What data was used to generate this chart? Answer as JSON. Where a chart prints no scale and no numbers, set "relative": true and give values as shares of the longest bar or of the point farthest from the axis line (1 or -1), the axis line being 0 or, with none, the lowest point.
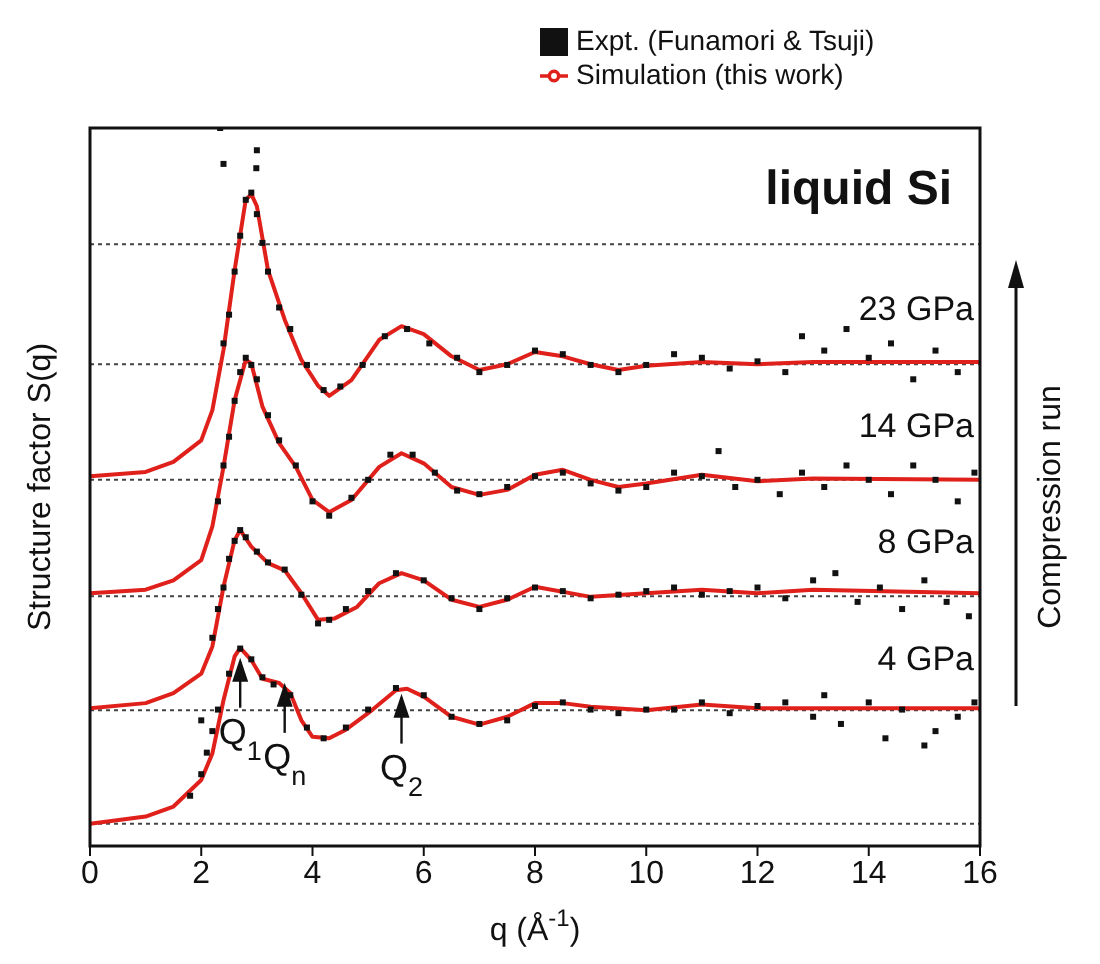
{
  "chart_data": {
    "type": "line",
    "relative": true,
    "xlabel": "q (Å$^{-1}$)",
    "ylabel": "Structure factor S(q)",
    "xlim": [
      0,
      16
    ],
    "xticks": [
      0,
      2,
      4,
      6,
      8,
      10,
      12,
      14,
      16
    ],
    "legend": "top right",
    "series": [
      {
        "name": "Expt. (Funamori & Tsuji)",
        "type": "scatter",
        "marker": "square",
        "color": "#111111",
        "x": [
          1.8,
          2.0,
          2.0,
          2.1,
          2.2,
          2.3,
          2.5,
          2.7,
          2.9,
          3.1,
          3.3,
          3.6,
          3.9,
          4.2,
          4.6,
          5.0,
          5.5,
          6.0,
          6.5,
          7.0,
          7.5,
          8.0,
          8.5,
          9.0,
          9.5,
          10,
          10.5,
          11,
          11.5,
          12,
          12.5,
          13,
          13.2,
          13.5,
          14,
          14.3,
          14.6,
          15,
          15.2,
          15.6,
          15.9,
          2.2,
          2.3,
          2.4,
          2.5,
          2.6,
          2.7,
          2.8,
          3.0,
          3.2,
          3.5,
          3.8,
          4.1,
          4.3,
          4.6,
          5.0,
          5.5,
          6.0,
          6.5,
          7.0,
          7.5,
          8.0,
          8.5,
          9.0,
          9.5,
          10,
          10.5,
          11,
          11.5,
          12,
          12.5,
          13,
          13.4,
          13.8,
          14.2,
          14.6,
          15,
          15.4,
          15.8,
          2.3,
          2.4,
          2.5,
          2.6,
          2.7,
          2.8,
          2.9,
          3.0,
          3.2,
          3.4,
          3.7,
          4.0,
          4.3,
          4.7,
          5.0,
          5.4,
          5.8,
          6.2,
          6.6,
          7.0,
          7.5,
          8.0,
          8.5,
          9.0,
          9.5,
          10,
          10.5,
          11,
          11.3,
          11.6,
          12,
          12.4,
          12.8,
          13.2,
          13.6,
          14,
          14.4,
          14.8,
          15.2,
          15.6,
          15.9,
          2.4,
          2.5,
          2.6,
          2.7,
          2.8,
          2.9,
          3.0,
          3.1,
          3.2,
          3.4,
          3.6,
          3.9,
          4.2,
          4.5,
          4.9,
          5.3,
          5.7,
          6.1,
          6.6,
          7.0,
          7.5,
          8.0,
          8.5,
          9.0,
          9.5,
          10,
          10.5,
          11,
          11.5,
          12,
          12.5,
          12.8,
          13.2,
          13.6,
          14,
          14.4,
          14.8,
          15.2,
          15.6,
          2.34,
          2.4,
          2.99,
          3.0
        ],
        "values": [
          0.07,
          0.1,
          0.175,
          0.13,
          0.16,
          0.19,
          0.24,
          0.275,
          0.26,
          0.235,
          0.225,
          0.21,
          0.165,
          0.15,
          0.165,
          0.19,
          0.22,
          0.21,
          0.18,
          0.17,
          0.175,
          0.195,
          0.2,
          0.19,
          0.185,
          0.19,
          0.19,
          0.2,
          0.185,
          0.195,
          0.2,
          0.18,
          0.21,
          0.17,
          0.2,
          0.15,
          0.19,
          0.14,
          0.16,
          0.18,
          0.2,
          0.29,
          0.33,
          0.36,
          0.4,
          0.425,
          0.44,
          0.43,
          0.41,
          0.395,
          0.385,
          0.35,
          0.31,
          0.315,
          0.33,
          0.355,
          0.38,
          0.37,
          0.345,
          0.33,
          0.345,
          0.36,
          0.355,
          0.345,
          0.35,
          0.355,
          0.36,
          0.35,
          0.355,
          0.36,
          0.345,
          0.37,
          0.38,
          0.34,
          0.36,
          0.33,
          0.37,
          0.34,
          0.32,
          0.48,
          0.53,
          0.57,
          0.62,
          0.66,
          0.68,
          0.67,
          0.65,
          0.6,
          0.565,
          0.53,
          0.48,
          0.46,
          0.485,
          0.51,
          0.545,
          0.545,
          0.52,
          0.495,
          0.49,
          0.5,
          0.515,
          0.52,
          0.505,
          0.495,
          0.5,
          0.52,
          0.515,
          0.55,
          0.5,
          0.51,
          0.49,
          0.52,
          0.5,
          0.53,
          0.51,
          0.49,
          0.53,
          0.51,
          0.48,
          0.52,
          0.7,
          0.74,
          0.8,
          0.85,
          0.9,
          0.91,
          0.88,
          0.84,
          0.8,
          0.75,
          0.72,
          0.67,
          0.635,
          0.64,
          0.67,
          0.71,
          0.72,
          0.7,
          0.68,
          0.66,
          0.67,
          0.69,
          0.685,
          0.67,
          0.66,
          0.67,
          0.685,
          0.68,
          0.665,
          0.675,
          0.66,
          0.71,
          0.69,
          0.72,
          0.68,
          0.7,
          0.65,
          0.69,
          0.66,
          1.0,
          0.95,
          0.944,
          0.969
        ]
      },
      {
        "name": "Simulation (this work)",
        "color": "#e0201b",
        "x": [
          0,
          1,
          1.5,
          2,
          2.2,
          2.4,
          2.6,
          2.7,
          2.9,
          3.1,
          3.4,
          3.6,
          3.8,
          4.0,
          4.3,
          4.6,
          5,
          5.5,
          5.7,
          6,
          6.5,
          7,
          7.5,
          8,
          8.5,
          9,
          10,
          11,
          12,
          16,
          0,
          1,
          1.5,
          2,
          2.2,
          2.4,
          2.6,
          2.7,
          2.9,
          3.2,
          3.5,
          3.8,
          4.1,
          4.4,
          4.8,
          5.2,
          5.6,
          6,
          6.5,
          7,
          7.5,
          8,
          9,
          10,
          11,
          12,
          13,
          16,
          0,
          1,
          1.5,
          2,
          2.2,
          2.4,
          2.6,
          2.8,
          2.9,
          3.1,
          3.4,
          3.7,
          4.0,
          4.3,
          4.7,
          5.2,
          5.6,
          6,
          6.5,
          7,
          7.5,
          8,
          8.5,
          9,
          9.5,
          10,
          11,
          12,
          13,
          16,
          0,
          1,
          1.5,
          2,
          2.2,
          2.4,
          2.6,
          2.8,
          2.9,
          3.0,
          3.2,
          3.5,
          3.8,
          4.1,
          4.3,
          4.7,
          5.2,
          5.6,
          6,
          6.5,
          7,
          7.5,
          8,
          8.5,
          9,
          9.5,
          10,
          11,
          12,
          13,
          16
        ],
        "values": [
          0.031,
          0.041,
          0.055,
          0.092,
          0.129,
          0.203,
          0.264,
          0.276,
          0.259,
          0.233,
          0.227,
          0.213,
          0.175,
          0.152,
          0.15,
          0.162,
          0.185,
          0.217,
          0.219,
          0.208,
          0.18,
          0.169,
          0.18,
          0.199,
          0.199,
          0.194,
          0.189,
          0.197,
          0.192,
          0.192,
          0.192,
          0.199,
          0.213,
          0.24,
          0.278,
          0.361,
          0.426,
          0.44,
          0.417,
          0.394,
          0.384,
          0.352,
          0.315,
          0.317,
          0.333,
          0.366,
          0.38,
          0.37,
          0.343,
          0.333,
          0.343,
          0.361,
          0.347,
          0.352,
          0.357,
          0.352,
          0.357,
          0.352,
          0.352,
          0.357,
          0.37,
          0.398,
          0.445,
          0.528,
          0.621,
          0.677,
          0.672,
          0.612,
          0.561,
          0.528,
          0.482,
          0.465,
          0.482,
          0.528,
          0.547,
          0.533,
          0.5,
          0.489,
          0.496,
          0.517,
          0.524,
          0.51,
          0.5,
          0.505,
          0.517,
          0.508,
          0.512,
          0.51,
          0.515,
          0.521,
          0.535,
          0.565,
          0.607,
          0.691,
          0.802,
          0.9,
          0.908,
          0.891,
          0.802,
          0.733,
          0.677,
          0.641,
          0.627,
          0.649,
          0.705,
          0.724,
          0.713,
          0.682,
          0.663,
          0.671,
          0.688,
          0.682,
          0.671,
          0.663,
          0.669,
          0.674,
          0.671,
          0.674,
          0.674
        ]
      }
    ],
    "ref_lines": [
      {
        "axis": "y",
        "value": 0.838,
        "color": "#444444",
        "line_style": "dotted"
      },
      {
        "axis": "y",
        "value": 0.671,
        "color": "#444444",
        "line_style": "dotted"
      },
      {
        "axis": "y",
        "value": 0.51,
        "color": "#444444",
        "line_style": "dotted"
      },
      {
        "axis": "y",
        "value": 0.348,
        "color": "#444444",
        "line_style": "dotted"
      },
      {
        "axis": "y",
        "value": 0.189,
        "color": "#444444",
        "line_style": "dotted"
      },
      {
        "axis": "y",
        "value": 0.031,
        "color": "#444444",
        "line_style": "dotted"
      }
    ],
    "annotations": [
      "liquid Si",
      "Compression run",
      "23 GPa",
      "14 GPa",
      "8 GPa",
      "4 GPa",
      {
        "text": "Q$_{1}$",
        "x": 2.7,
        "y": 0.265
      },
      {
        "text": "Q$_{n}$",
        "x": 3.5,
        "y": 0.23
      },
      {
        "text": "Q$_{2}$",
        "x": 5.6,
        "y": 0.215
      }
    ]
  }
}
